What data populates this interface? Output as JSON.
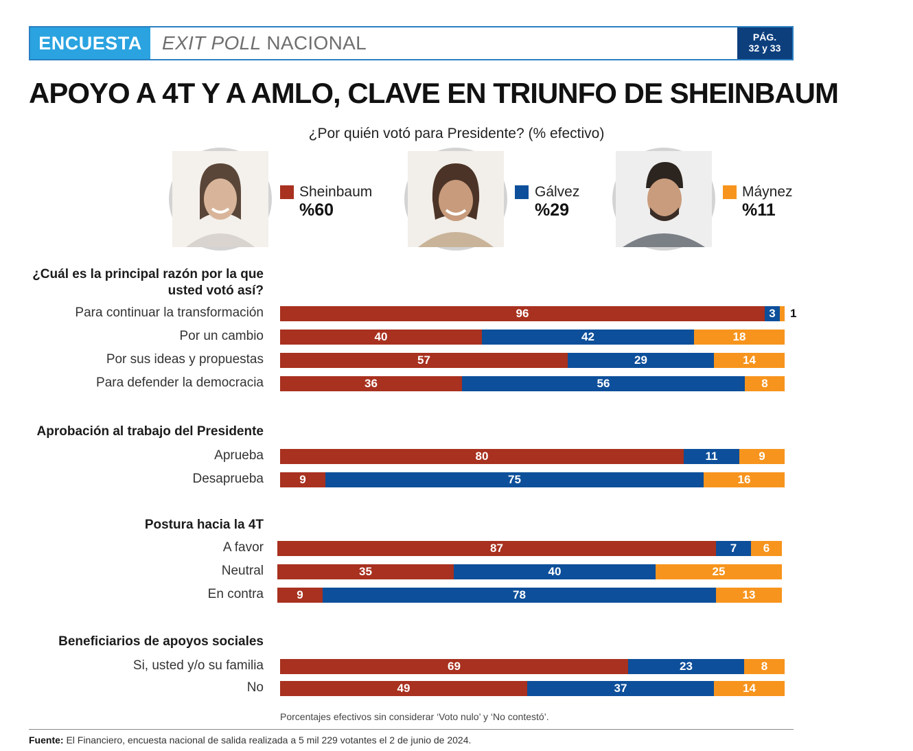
{
  "header": {
    "tag": "ENCUESTA",
    "title_italic": "EXIT POLL",
    "title_rest": " NACIONAL",
    "page_label": "PÁG.",
    "page_numbers": "32 y 33"
  },
  "headline": "APOYO A 4T Y A AMLO, CLAVE EN TRIUNFO DE SHEINBAUM",
  "question": "¿Por quién votó para Presidente? (% efectivo)",
  "colors": {
    "sheinbaum": "#a8311f",
    "galvez": "#0d4f9a",
    "maynez": "#f7941d",
    "header_tag": "#2aa3e0",
    "header_page": "#0d3f7d"
  },
  "candidates": [
    {
      "name": "Sheinbaum",
      "value": "%60",
      "color": "#a8311f"
    },
    {
      "name": "Gálvez",
      "value": "%29",
      "color": "#0d4f9a"
    },
    {
      "name": "Máynez",
      "value": "%11",
      "color": "#f7941d"
    }
  ],
  "chart_data": {
    "type": "bar",
    "orientation": "horizontal",
    "stacked": true,
    "series_names": [
      "Sheinbaum",
      "Gálvez",
      "Máynez"
    ],
    "groups": [
      {
        "title": "¿Cuál es la principal razón por la que usted votó así?",
        "rows": [
          {
            "label": "Para continuar la transformación",
            "values": [
              96,
              3,
              1
            ]
          },
          {
            "label": "Por un cambio",
            "values": [
              40,
              42,
              18
            ]
          },
          {
            "label": "Por sus ideas y propuestas",
            "values": [
              57,
              29,
              14
            ]
          },
          {
            "label": "Para defender la democracia",
            "values": [
              36,
              56,
              8
            ]
          }
        ]
      },
      {
        "title": "Aprobación al trabajo del Presidente",
        "rows": [
          {
            "label": "Aprueba",
            "values": [
              80,
              11,
              9
            ]
          },
          {
            "label": "Desaprueba",
            "values": [
              9,
              75,
              16
            ]
          }
        ]
      },
      {
        "title": "Postura hacia la 4T",
        "rows": [
          {
            "label": "A favor",
            "values": [
              87,
              7,
              6
            ]
          },
          {
            "label": "Neutral",
            "values": [
              35,
              40,
              25
            ]
          },
          {
            "label": "En contra",
            "values": [
              9,
              78,
              13
            ]
          }
        ]
      },
      {
        "title": "Beneficiarios de apoyos sociales",
        "rows": [
          {
            "label": "Si, usted y/o su familia",
            "values": [
              69,
              23,
              8
            ]
          },
          {
            "label": "No",
            "values": [
              49,
              37,
              14
            ]
          }
        ]
      }
    ]
  },
  "note": "Porcentajes efectivos sin considerar ‘Voto nulo’ y ‘No contestó’.",
  "source": {
    "label": "Fuente:",
    "text": " El Financiero, encuesta nacional de salida realizada a 5 mil 229 votantes el 2 de junio de 2024."
  }
}
